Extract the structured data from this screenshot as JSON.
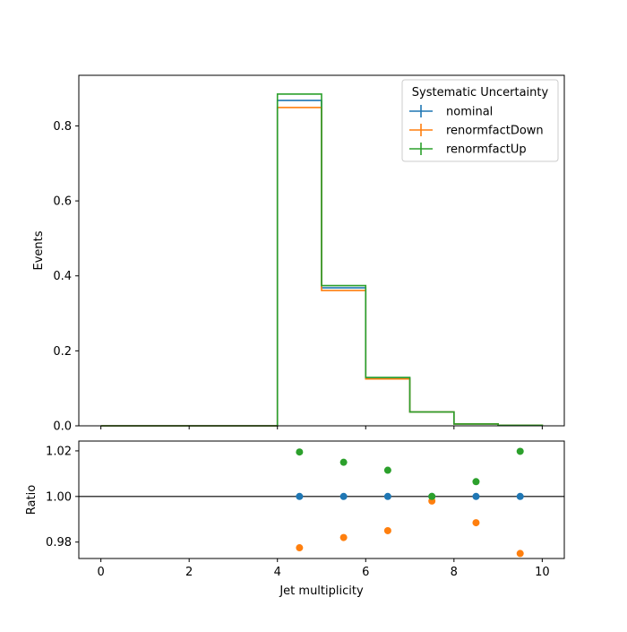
{
  "chart_data": [
    {
      "type": "line",
      "subtype": "step-histogram",
      "title": "",
      "xlabel": "",
      "ylabel": "Events",
      "xlim": [
        -0.5,
        10.5
      ],
      "ylim": [
        0,
        0.935
      ],
      "xticks": [
        0,
        2,
        4,
        6,
        8,
        10
      ],
      "xtick_labels_visible": false,
      "yticks": [
        0.0,
        0.2,
        0.4,
        0.6,
        0.8
      ],
      "ytick_labels": [
        "0.0",
        "0.2",
        "0.4",
        "0.6",
        "0.8"
      ],
      "bin_edges": [
        0,
        1,
        2,
        3,
        4,
        5,
        6,
        7,
        8,
        9,
        10
      ],
      "grid": false,
      "legend": {
        "title": "Systematic Uncertainty",
        "placement": "top-right",
        "marker": "errorbar"
      },
      "series": [
        {
          "name": "nominal",
          "color": "#1f77b4",
          "values": [
            0,
            0,
            0,
            0,
            0.868,
            0.368,
            0.127,
            0.037,
            0.005,
            0.0015
          ]
        },
        {
          "name": "renormfactDown",
          "color": "#ff7f0e",
          "values": [
            0,
            0,
            0,
            0,
            0.849,
            0.361,
            0.125,
            0.037,
            0.005,
            0.0015
          ]
        },
        {
          "name": "renormfactUp",
          "color": "#2ca02c",
          "values": [
            0,
            0,
            0,
            0,
            0.885,
            0.374,
            0.129,
            0.037,
            0.005,
            0.0015
          ]
        }
      ]
    },
    {
      "type": "scatter",
      "title": "",
      "xlabel": "Jet multiplicity",
      "ylabel": "Ratio",
      "xlim": [
        -0.5,
        10.5
      ],
      "ylim": [
        0.9728,
        1.0243
      ],
      "xticks": [
        0,
        2,
        4,
        6,
        8,
        10
      ],
      "xtick_labels": [
        "0",
        "2",
        "4",
        "6",
        "8",
        "10"
      ],
      "yticks": [
        0.98,
        1.0,
        1.02
      ],
      "ytick_labels": [
        "0.98",
        "1.00",
        "1.02"
      ],
      "reference_line": 1.0,
      "grid": false,
      "x": [
        4.5,
        5.5,
        6.5,
        7.5,
        8.5,
        9.5
      ],
      "series": [
        {
          "name": "nominal",
          "color": "#1f77b4",
          "values": [
            1.0,
            1.0,
            1.0,
            1.0,
            1.0,
            1.0
          ]
        },
        {
          "name": "renormfactDown",
          "color": "#ff7f0e",
          "values": [
            0.9775,
            0.982,
            0.985,
            0.998,
            0.9885,
            0.975
          ]
        },
        {
          "name": "renormfactUp",
          "color": "#2ca02c",
          "values": [
            1.0195,
            1.015,
            1.0115,
            1.0,
            1.0065,
            1.0198
          ]
        }
      ]
    }
  ]
}
